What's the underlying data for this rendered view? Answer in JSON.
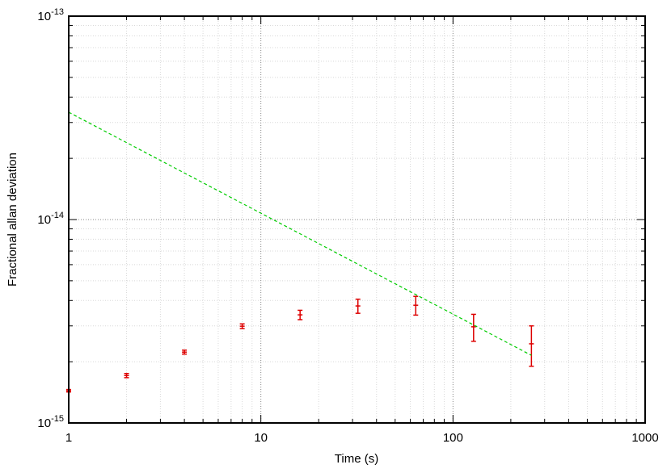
{
  "chart_data": {
    "type": "scatter",
    "xlabel": "Time (s)",
    "ylabel": "Fractional allan deviation",
    "xscale": "log",
    "yscale": "log",
    "grid": true,
    "minor_grid": true,
    "xlim": [
      1,
      1000
    ],
    "xticks": [
      1,
      10,
      100,
      1000
    ],
    "ylim": [
      1e-15,
      1e-13
    ],
    "yticks": [
      {
        "value": 1e-15,
        "label": "10^-15"
      },
      {
        "value": 1e-14,
        "label": "10^-14"
      },
      {
        "value": 1e-13,
        "label": "10^-13"
      }
    ],
    "series": [
      {
        "kind": "errorbar",
        "color": "#dd0000",
        "x": [
          1,
          2,
          4,
          8,
          16,
          32,
          64,
          128,
          256
        ],
        "values": [
          1.44e-15,
          1.71e-15,
          2.23e-15,
          2.99e-15,
          3.4e-15,
          3.76e-15,
          3.79e-15,
          2.97e-15,
          2.45e-15
        ],
        "errors": [
          2e-17,
          4e-17,
          5e-17,
          8e-17,
          1.8e-16,
          3e-16,
          4e-16,
          4.5e-16,
          5.5e-16
        ]
      },
      {
        "kind": "line",
        "color": "#00cc00",
        "dash": true,
        "x": [
          1,
          256
        ],
        "values": [
          3.37e-14,
          2.15e-15
        ]
      }
    ]
  }
}
